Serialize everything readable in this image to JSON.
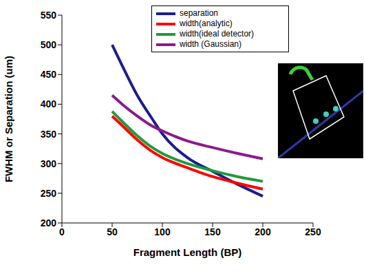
{
  "chart_data": {
    "type": "line",
    "x_label": "Fragment Length (BP)",
    "y_label": "FWHM or Separation (um)",
    "xlim": [
      0,
      250
    ],
    "xticks": [
      0,
      50,
      100,
      150,
      200,
      250
    ],
    "ylim": [
      200,
      550
    ],
    "yticks": [
      200,
      250,
      300,
      350,
      400,
      450,
      500,
      550
    ],
    "grid": false,
    "legend": "upper right",
    "x": [
      50,
      60,
      75,
      90,
      100,
      125,
      150,
      175,
      200
    ],
    "series": [
      {
        "name": "separation",
        "color": "#1c1c8f",
        "values": [
          500,
          465,
          415,
          375,
          350,
          310,
          287,
          265,
          245
        ]
      },
      {
        "name": "width(analytic)",
        "color": "#ff0000",
        "values": [
          380,
          364,
          340,
          320,
          310,
          293,
          278,
          267,
          257
        ]
      },
      {
        "name": "width(ideal detector)",
        "color": "#1f9a3a",
        "values": [
          388,
          371,
          347,
          327,
          317,
          300,
          288,
          278,
          270
        ]
      },
      {
        "name": "width (Gaussian)",
        "color": "#8b1a8b",
        "values": [
          415,
          400,
          380,
          363,
          355,
          338,
          327,
          317,
          308
        ]
      }
    ]
  }
}
